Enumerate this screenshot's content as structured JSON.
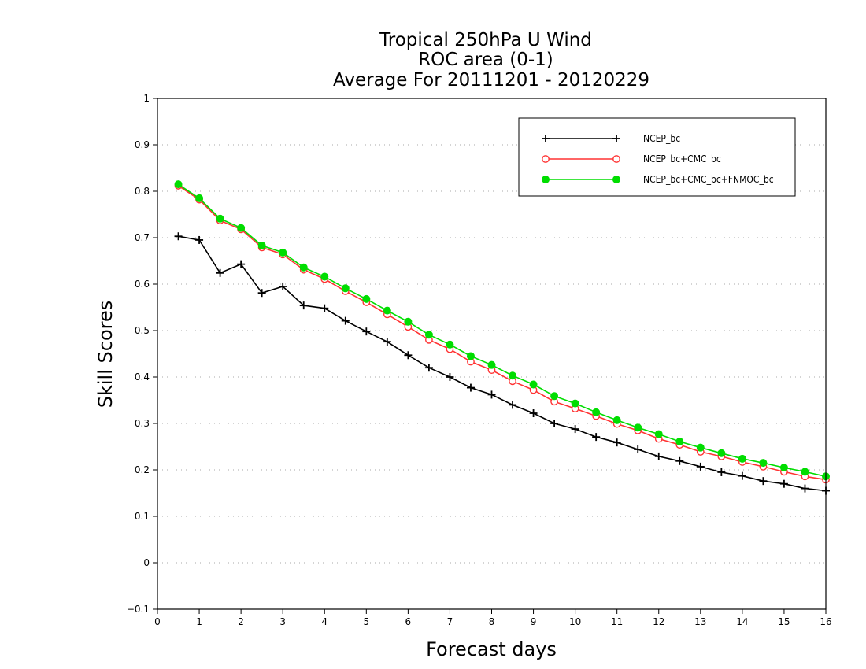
{
  "chart_data": {
    "type": "line",
    "title": [
      "Tropical 250hPa U Wind",
      "ROC area (0-1)",
      "Average For 20111201 - 20120229"
    ],
    "xlabel": "Forecast days",
    "ylabel": "Skill Scores",
    "xlim": [
      0,
      16
    ],
    "ylim": [
      -0.1,
      1
    ],
    "xticks": [
      0,
      1,
      2,
      3,
      4,
      5,
      6,
      7,
      8,
      9,
      10,
      11,
      12,
      13,
      14,
      15,
      16
    ],
    "yticks": [
      -0.1,
      0,
      0.1,
      0.2,
      0.3,
      0.4,
      0.5,
      0.6,
      0.7,
      0.8,
      0.9,
      1
    ],
    "ytick_labels": [
      "−0.1",
      "0",
      "0.1",
      "0.2",
      "0.3",
      "0.4",
      "0.5",
      "0.6",
      "0.7",
      "0.8",
      "0.9",
      "1"
    ],
    "grid": "horizontal-dotted",
    "legend_position": "top-right",
    "x": [
      0.5,
      1,
      1.5,
      2,
      2.5,
      3,
      3.5,
      4,
      4.5,
      5,
      5.5,
      6,
      6.5,
      7,
      7.5,
      8,
      8.5,
      9,
      9.5,
      10,
      10.5,
      11,
      11.5,
      12,
      12.5,
      13,
      13.5,
      14,
      14.5,
      15,
      15.5,
      16
    ],
    "series": [
      {
        "name": "NCEP_bc",
        "color": "#000000",
        "marker": "plus",
        "values": [
          0.703,
          0.695,
          0.624,
          0.643,
          0.581,
          0.595,
          0.554,
          0.548,
          0.521,
          0.498,
          0.476,
          0.447,
          0.42,
          0.4,
          0.377,
          0.362,
          0.34,
          0.322,
          0.3,
          0.288,
          0.271,
          0.259,
          0.244,
          0.229,
          0.219,
          0.207,
          0.195,
          0.187,
          0.176,
          0.17,
          0.16,
          0.155
        ]
      },
      {
        "name": "NCEP_bc+CMC_bc",
        "color": "#ff3333",
        "marker": "open-circle",
        "values": [
          0.812,
          0.782,
          0.737,
          0.718,
          0.679,
          0.664,
          0.631,
          0.611,
          0.585,
          0.561,
          0.535,
          0.508,
          0.48,
          0.46,
          0.433,
          0.415,
          0.391,
          0.372,
          0.347,
          0.332,
          0.316,
          0.299,
          0.285,
          0.267,
          0.254,
          0.239,
          0.229,
          0.217,
          0.207,
          0.196,
          0.186,
          0.179
        ]
      },
      {
        "name": "NCEP_bc+CMC_bc+FNMOC_bc",
        "color": "#00dd00",
        "marker": "filled-circle",
        "values": [
          0.815,
          0.785,
          0.741,
          0.721,
          0.683,
          0.668,
          0.636,
          0.616,
          0.591,
          0.568,
          0.543,
          0.519,
          0.491,
          0.47,
          0.445,
          0.426,
          0.403,
          0.384,
          0.359,
          0.343,
          0.324,
          0.307,
          0.291,
          0.277,
          0.261,
          0.248,
          0.236,
          0.224,
          0.215,
          0.205,
          0.196,
          0.186
        ]
      }
    ]
  }
}
